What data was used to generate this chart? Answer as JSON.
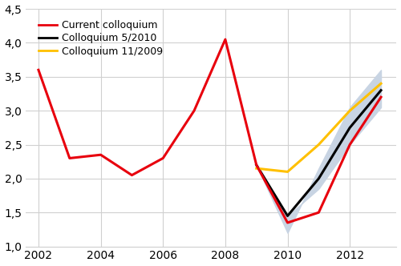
{
  "red_x": [
    2002,
    2003,
    2004,
    2005,
    2006,
    2007,
    2008,
    2009,
    2010,
    2011,
    2012,
    2013
  ],
  "red_y": [
    3.6,
    2.3,
    2.35,
    2.05,
    2.3,
    3.0,
    4.05,
    2.2,
    1.35,
    1.5,
    2.5,
    3.2
  ],
  "black_x": [
    2009,
    2010,
    2011,
    2012,
    2013
  ],
  "black_y": [
    2.2,
    1.45,
    2.0,
    2.75,
    3.3
  ],
  "yellow_x": [
    2009,
    2010,
    2011,
    2012,
    2013
  ],
  "yellow_y": [
    2.15,
    2.1,
    2.5,
    3.0,
    3.4
  ],
  "shade_upper_x": [
    2009,
    2010,
    2011,
    2012,
    2013
  ],
  "shade_upper_y": [
    2.2,
    1.2,
    2.15,
    3.05,
    3.6
  ],
  "shade_lower_x": [
    2009,
    2010,
    2011,
    2012,
    2013
  ],
  "shade_lower_y": [
    2.2,
    1.45,
    1.85,
    2.5,
    3.05
  ],
  "red_color": "#e8000d",
  "black_color": "#000000",
  "yellow_color": "#ffc000",
  "shade_color": "#c8d4e3",
  "grid_color": "#d0d0d0",
  "bg_color": "#ffffff",
  "legend_labels": [
    "Current colloquium",
    "Colloquium 5/2010",
    "Colloquium 11/2009"
  ],
  "ylim": [
    1.0,
    4.5
  ],
  "yticks": [
    1.0,
    1.5,
    2.0,
    2.5,
    3.0,
    3.5,
    4.0,
    4.5
  ],
  "ytick_labels": [
    "1,0",
    "1,5",
    "2,0",
    "2,5",
    "3,0",
    "3,5",
    "4,0",
    "4,5"
  ],
  "xlim": [
    2001.6,
    2013.5
  ],
  "xticks": [
    2002,
    2004,
    2006,
    2008,
    2010,
    2012
  ],
  "figsize": [
    5.0,
    3.32
  ],
  "dpi": 100
}
